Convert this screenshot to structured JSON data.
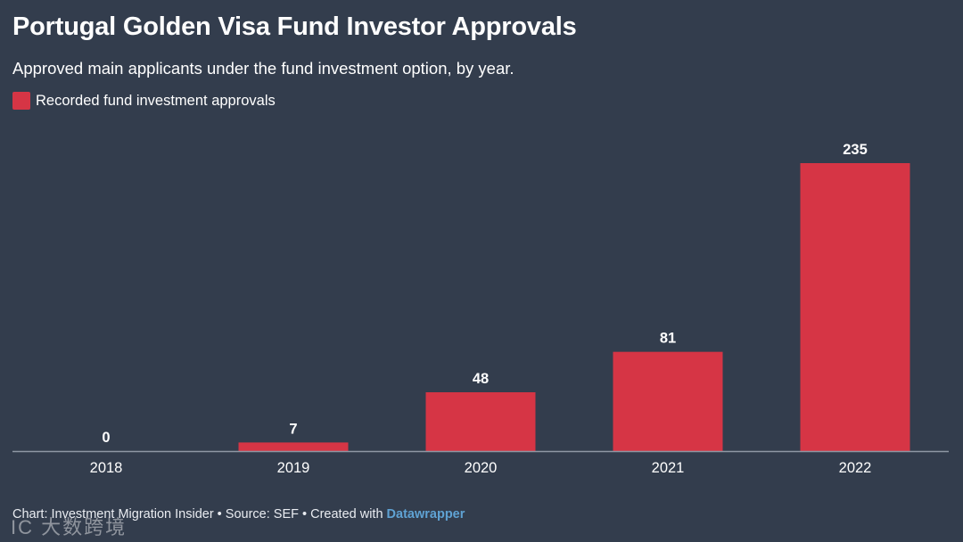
{
  "colors": {
    "background": "#333d4d",
    "bar": "#d63545",
    "axis": "#8e97a4",
    "text": "#ffffff",
    "link": "#5fa2d3"
  },
  "chart_data": {
    "type": "bar",
    "title": "Portugal Golden Visa Fund Investor Approvals",
    "subtitle": "Approved main applicants under the fund investment option, by year.",
    "categories": [
      "2018",
      "2019",
      "2020",
      "2021",
      "2022"
    ],
    "series": [
      {
        "name": "Recorded fund investment approvals",
        "values": [
          0,
          7,
          48,
          81,
          235
        ]
      }
    ],
    "ylim": [
      0,
      235
    ],
    "grid": false,
    "legend_position": "top-left",
    "data_labels": true
  },
  "footer": {
    "text": "Chart: Investment Migration Insider • Source: SEF • Created with ",
    "brand": "Datawrapper"
  },
  "watermark": {
    "text": "IC 大数跨境"
  }
}
